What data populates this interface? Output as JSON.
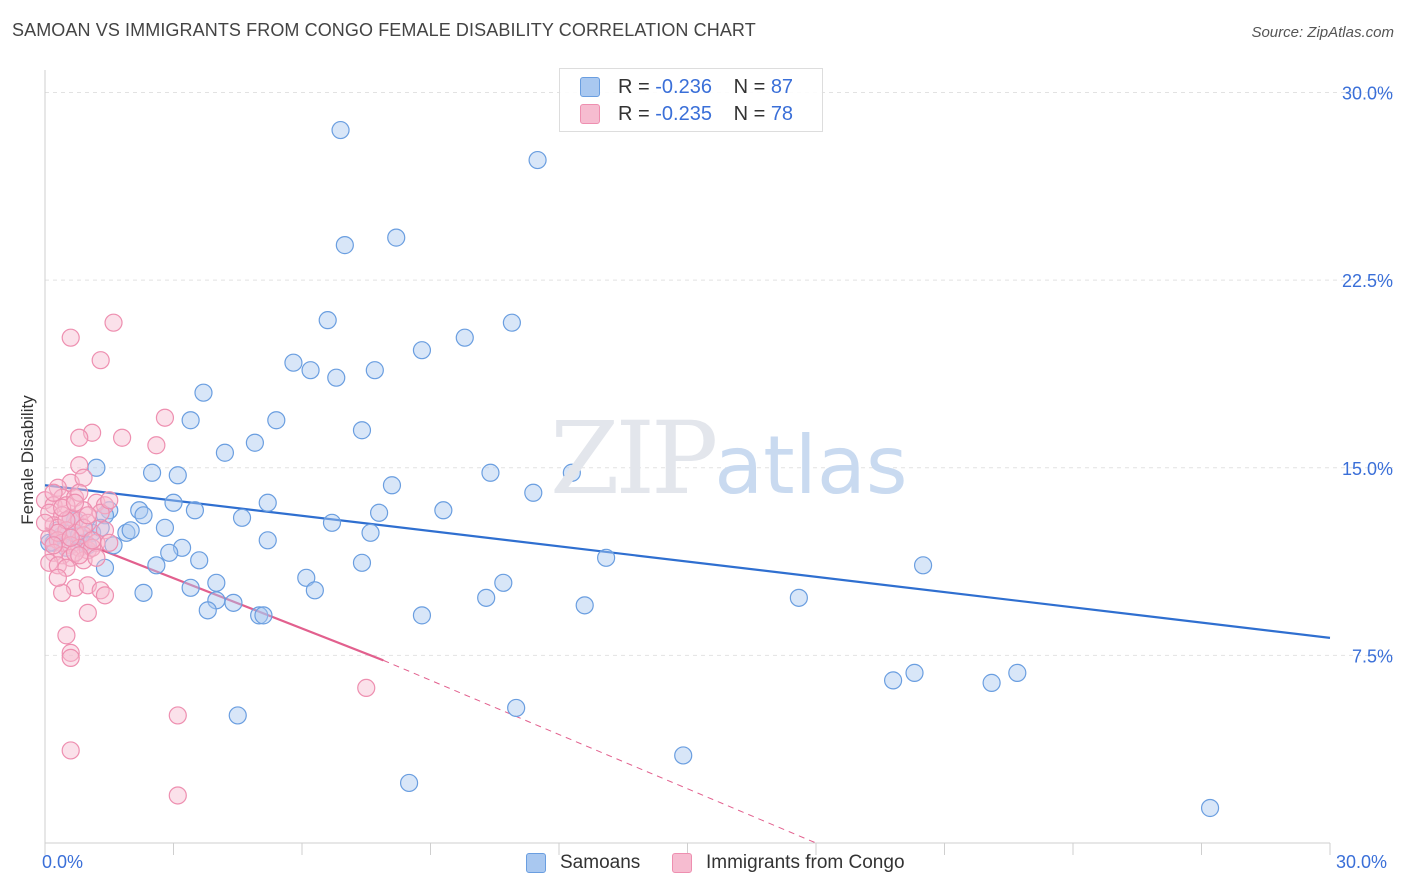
{
  "title": "SAMOAN VS IMMIGRANTS FROM CONGO FEMALE DISABILITY CORRELATION CHART",
  "source": "Source: ZipAtlas.com",
  "watermark": {
    "zip": "ZIP",
    "atlas": "atlas"
  },
  "legend": {
    "series": [
      {
        "r_label": "R = ",
        "r_value": "-0.236",
        "n_label": "N = ",
        "n_value": "87",
        "color": "#a9c8f0",
        "edge": "#6a9ee0"
      },
      {
        "r_label": "R = ",
        "r_value": "-0.235",
        "n_label": "N = ",
        "n_value": "78",
        "color": "#f6bcd0",
        "edge": "#ee8fb0"
      }
    ]
  },
  "bottom_legend": [
    "Samoans",
    "Immigrants from Congo"
  ],
  "chart_data": {
    "type": "scatter",
    "title": "SAMOAN VS IMMIGRANTS FROM CONGO FEMALE DISABILITY CORRELATION CHART",
    "xlabel": "",
    "ylabel": "Female Disability",
    "xlim": [
      0,
      30
    ],
    "ylim": [
      0,
      30.9
    ],
    "x_tick_labels": [
      "0.0%",
      "30.0%"
    ],
    "y_ticks": [
      7.5,
      15.0,
      22.5,
      30.0
    ],
    "y_tick_labels": [
      "7.5%",
      "15.0%",
      "22.5%",
      "30.0%"
    ],
    "grid": true,
    "legend_position": "top-center",
    "series": [
      {
        "name": "Samoans",
        "color": "#6a9ee0",
        "fill": "#a9c8f0",
        "trend": {
          "x": [
            0,
            30
          ],
          "y": [
            14.3,
            8.2
          ],
          "color": "#2f6fd0"
        },
        "points": [
          [
            6.9,
            28.5
          ],
          [
            11.5,
            27.3
          ],
          [
            7.0,
            23.9
          ],
          [
            8.2,
            24.2
          ],
          [
            6.6,
            20.9
          ],
          [
            10.9,
            20.8
          ],
          [
            9.8,
            20.2
          ],
          [
            8.8,
            19.7
          ],
          [
            5.8,
            19.2
          ],
          [
            6.2,
            18.9
          ],
          [
            6.8,
            18.6
          ],
          [
            7.7,
            18.9
          ],
          [
            3.7,
            18.0
          ],
          [
            3.4,
            16.9
          ],
          [
            5.4,
            16.9
          ],
          [
            7.4,
            16.5
          ],
          [
            4.9,
            16.0
          ],
          [
            4.2,
            15.6
          ],
          [
            1.2,
            15.0
          ],
          [
            2.5,
            14.8
          ],
          [
            3.1,
            14.7
          ],
          [
            10.4,
            14.8
          ],
          [
            12.3,
            14.8
          ],
          [
            8.1,
            14.3
          ],
          [
            11.4,
            14.0
          ],
          [
            3.0,
            13.6
          ],
          [
            5.2,
            13.6
          ],
          [
            1.5,
            13.3
          ],
          [
            2.2,
            13.3
          ],
          [
            3.5,
            13.3
          ],
          [
            2.3,
            13.1
          ],
          [
            4.6,
            13.0
          ],
          [
            1.4,
            13.1
          ],
          [
            6.7,
            12.8
          ],
          [
            7.8,
            13.2
          ],
          [
            9.3,
            13.3
          ],
          [
            1.1,
            12.4
          ],
          [
            1.9,
            12.4
          ],
          [
            2.8,
            12.6
          ],
          [
            2.0,
            12.5
          ],
          [
            5.2,
            12.1
          ],
          [
            7.6,
            12.4
          ],
          [
            0.2,
            12.0
          ],
          [
            0.4,
            12.3
          ],
          [
            0.6,
            12.2
          ],
          [
            0.9,
            12.0
          ],
          [
            1.6,
            11.9
          ],
          [
            0.5,
            11.8
          ],
          [
            3.2,
            11.8
          ],
          [
            2.9,
            11.6
          ],
          [
            3.6,
            11.3
          ],
          [
            1.4,
            11.0
          ],
          [
            2.6,
            11.1
          ],
          [
            7.4,
            11.2
          ],
          [
            13.1,
            11.4
          ],
          [
            20.5,
            11.1
          ],
          [
            4.0,
            10.4
          ],
          [
            6.1,
            10.6
          ],
          [
            6.3,
            10.1
          ],
          [
            10.7,
            10.4
          ],
          [
            2.3,
            10.0
          ],
          [
            3.4,
            10.2
          ],
          [
            4.0,
            9.7
          ],
          [
            4.4,
            9.6
          ],
          [
            3.8,
            9.3
          ],
          [
            10.3,
            9.8
          ],
          [
            12.6,
            9.5
          ],
          [
            17.6,
            9.8
          ],
          [
            5.0,
            9.1
          ],
          [
            5.1,
            9.1
          ],
          [
            8.8,
            9.1
          ],
          [
            0.3,
            12.5
          ],
          [
            0.8,
            12.3
          ],
          [
            1.0,
            11.9
          ],
          [
            19.8,
            6.5
          ],
          [
            20.3,
            6.8
          ],
          [
            22.1,
            6.4
          ],
          [
            22.7,
            6.8
          ],
          [
            11.0,
            5.4
          ],
          [
            4.5,
            5.1
          ],
          [
            14.9,
            3.5
          ],
          [
            8.5,
            2.4
          ],
          [
            27.2,
            1.4
          ],
          [
            0.7,
            12.9
          ],
          [
            1.3,
            12.6
          ],
          [
            0.1,
            12.0
          ],
          [
            0.6,
            13.0
          ]
        ]
      },
      {
        "name": "Immigrants from Congo",
        "color": "#ee8fb0",
        "fill": "#f6bcd0",
        "trend": {
          "x": [
            0,
            7.9
          ],
          "y": [
            12.6,
            7.3
          ],
          "color": "#e2608e"
        },
        "trend_extended": {
          "x": [
            7.9,
            18.0
          ],
          "y": [
            7.3,
            0.0
          ]
        },
        "points": [
          [
            1.6,
            20.8
          ],
          [
            0.6,
            20.2
          ],
          [
            1.3,
            19.3
          ],
          [
            2.8,
            17.0
          ],
          [
            1.1,
            16.4
          ],
          [
            1.8,
            16.2
          ],
          [
            0.8,
            16.2
          ],
          [
            2.6,
            15.9
          ],
          [
            0.8,
            15.1
          ],
          [
            0.6,
            14.4
          ],
          [
            0.9,
            14.6
          ],
          [
            0.3,
            14.2
          ],
          [
            0.4,
            13.8
          ],
          [
            0.7,
            13.8
          ],
          [
            1.2,
            13.6
          ],
          [
            0.0,
            13.7
          ],
          [
            0.2,
            13.5
          ],
          [
            0.5,
            13.5
          ],
          [
            0.9,
            13.3
          ],
          [
            1.4,
            13.5
          ],
          [
            0.1,
            13.2
          ],
          [
            0.4,
            13.1
          ],
          [
            0.6,
            13.0
          ],
          [
            0.8,
            12.9
          ],
          [
            1.0,
            12.8
          ],
          [
            0.2,
            12.7
          ],
          [
            0.3,
            12.6
          ],
          [
            0.5,
            12.5
          ],
          [
            0.7,
            12.4
          ],
          [
            0.9,
            12.3
          ],
          [
            1.4,
            12.5
          ],
          [
            0.1,
            12.2
          ],
          [
            0.3,
            12.1
          ],
          [
            0.4,
            12.0
          ],
          [
            0.6,
            11.9
          ],
          [
            0.8,
            11.8
          ],
          [
            1.0,
            11.7
          ],
          [
            1.2,
            12.0
          ],
          [
            0.2,
            11.6
          ],
          [
            0.4,
            11.5
          ],
          [
            0.6,
            11.4
          ],
          [
            0.9,
            11.3
          ],
          [
            0.1,
            11.2
          ],
          [
            0.3,
            11.1
          ],
          [
            0.5,
            11.0
          ],
          [
            1.5,
            12.0
          ],
          [
            1.1,
            11.8
          ],
          [
            0.7,
            11.6
          ],
          [
            0.7,
            10.2
          ],
          [
            1.0,
            10.3
          ],
          [
            0.4,
            10.0
          ],
          [
            1.3,
            10.1
          ],
          [
            1.4,
            9.9
          ],
          [
            1.0,
            9.2
          ],
          [
            0.5,
            8.3
          ],
          [
            0.6,
            7.6
          ],
          [
            0.6,
            7.4
          ],
          [
            7.5,
            6.2
          ],
          [
            3.1,
            5.1
          ],
          [
            0.6,
            3.7
          ],
          [
            3.1,
            1.9
          ],
          [
            0.2,
            14.0
          ],
          [
            0.8,
            14.0
          ],
          [
            1.3,
            13.2
          ],
          [
            0.5,
            12.9
          ],
          [
            0.9,
            12.6
          ],
          [
            0.3,
            12.4
          ],
          [
            0.6,
            12.2
          ],
          [
            0.2,
            11.9
          ],
          [
            1.1,
            12.1
          ],
          [
            0.4,
            13.4
          ],
          [
            0.7,
            13.6
          ],
          [
            1.5,
            13.7
          ],
          [
            0.0,
            12.8
          ],
          [
            0.8,
            11.5
          ],
          [
            1.0,
            13.1
          ],
          [
            0.3,
            10.6
          ],
          [
            1.2,
            11.4
          ]
        ]
      }
    ]
  }
}
